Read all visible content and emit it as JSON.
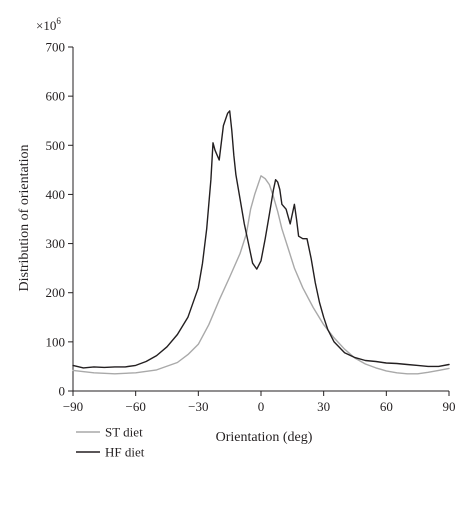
{
  "chart_data": {
    "type": "line",
    "title": "",
    "xlabel": "Orientation (deg)",
    "ylabel": "Distribution of orientation",
    "y_multiplier_label": "×10",
    "y_multiplier_exponent": "6",
    "xlim": [
      -90,
      90
    ],
    "ylim": [
      0,
      700
    ],
    "xticks": [
      -90,
      -60,
      -30,
      0,
      30,
      60,
      90
    ],
    "xtick_labels": [
      "−90",
      "−60",
      "−30",
      "0",
      "30",
      "60",
      "90"
    ],
    "yticks": [
      0,
      100,
      200,
      300,
      400,
      500,
      600,
      700
    ],
    "ytick_labels": [
      "0",
      "100",
      "200",
      "300",
      "400",
      "500",
      "600",
      "700"
    ],
    "grid": false,
    "legend_position": "bottom-left",
    "colors": {
      "ST diet": "#a9a9a9",
      "HF diet": "#231f20"
    },
    "series": [
      {
        "name": "ST diet",
        "x": [
          -90,
          -80,
          -70,
          -60,
          -50,
          -40,
          -35,
          -30,
          -25,
          -20,
          -15,
          -10,
          -7,
          -5,
          -3,
          0,
          2,
          4,
          6,
          8,
          10,
          13,
          16,
          20,
          25,
          30,
          35,
          40,
          45,
          50,
          55,
          60,
          65,
          70,
          75,
          80,
          85,
          90
        ],
        "values": [
          42,
          37,
          35,
          37,
          43,
          58,
          74,
          95,
          135,
          185,
          232,
          280,
          320,
          370,
          400,
          438,
          432,
          420,
          395,
          365,
          330,
          290,
          250,
          210,
          170,
          135,
          108,
          85,
          67,
          55,
          47,
          41,
          37,
          35,
          35,
          38,
          42,
          46
        ]
      },
      {
        "name": "HF diet",
        "x": [
          -90,
          -85,
          -80,
          -75,
          -70,
          -65,
          -60,
          -55,
          -50,
          -45,
          -40,
          -35,
          -30,
          -28,
          -26,
          -24,
          -23,
          -22,
          -20,
          -18,
          -16,
          -15,
          -14,
          -13,
          -12,
          -10,
          -8,
          -6,
          -4,
          -2,
          0,
          2,
          4,
          6,
          7,
          8,
          9,
          10,
          12,
          14,
          16,
          17,
          18,
          20,
          22,
          24,
          26,
          28,
          30,
          32,
          35,
          40,
          45,
          50,
          55,
          60,
          65,
          70,
          75,
          80,
          85,
          90
        ],
        "values": [
          52,
          47,
          49,
          48,
          49,
          49,
          52,
          60,
          72,
          90,
          115,
          150,
          210,
          260,
          330,
          430,
          505,
          490,
          470,
          540,
          565,
          570,
          530,
          480,
          440,
          390,
          340,
          300,
          260,
          248,
          265,
          310,
          360,
          410,
          430,
          425,
          410,
          380,
          370,
          340,
          380,
          350,
          315,
          310,
          310,
          270,
          220,
          180,
          150,
          125,
          100,
          78,
          68,
          62,
          60,
          57,
          56,
          54,
          52,
          50,
          50,
          54
        ]
      }
    ]
  }
}
